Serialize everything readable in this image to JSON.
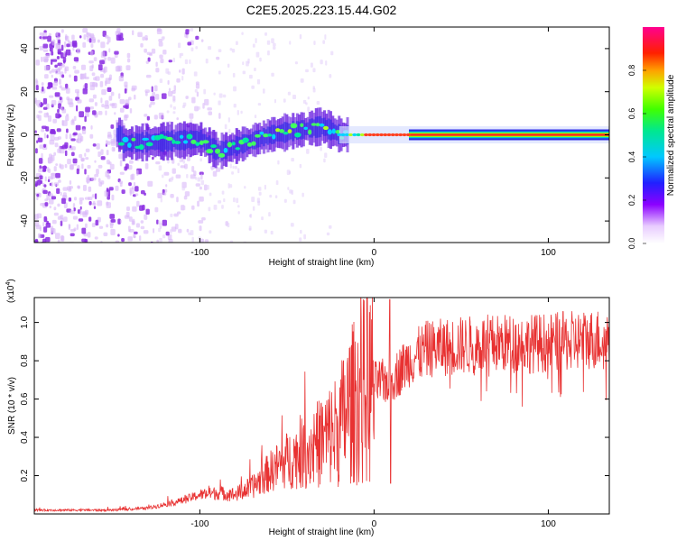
{
  "title": "C2E5.2025.223.15.44.G02",
  "colors": {
    "snr_line": "#e83232",
    "axis": "#000000"
  },
  "chart_data": [
    {
      "type": "heatmap",
      "xlabel": "Height of straight line (km)",
      "ylabel": "Frequency (Hz)",
      "xlim": [
        -195,
        135
      ],
      "ylim": [
        -50,
        50
      ],
      "xticks": [
        -100,
        0,
        100
      ],
      "yticks": [
        -40,
        -20,
        0,
        20,
        40
      ],
      "colorbar": {
        "label": "Normalized spectral amplitude",
        "range": [
          0,
          1
        ],
        "ticks": [
          "0.0",
          "0.2",
          "0.4",
          "0.6",
          "0.8"
        ],
        "colormap": "rainbow (white-violet-blue-cyan-green-yellow-red-magenta)"
      },
      "ridge": [
        {
          "x": -145,
          "y": -4
        },
        {
          "x": -120,
          "y": -3
        },
        {
          "x": -100,
          "y": -2
        },
        {
          "x": -90,
          "y": -8
        },
        {
          "x": -75,
          "y": -4
        },
        {
          "x": -60,
          "y": 0
        },
        {
          "x": -45,
          "y": 2
        },
        {
          "x": -30,
          "y": 4
        },
        {
          "x": -20,
          "y": 0
        },
        {
          "x": -10,
          "y": 0
        },
        {
          "x": 0,
          "y": 0
        },
        {
          "x": 20,
          "y": 0
        },
        {
          "x": 135,
          "y": 0
        }
      ],
      "noise_region_km": [
        -195,
        -125
      ]
    },
    {
      "type": "line",
      "xlabel": "Height of straight line (km)",
      "ylabel": "SNR (10 * v/v)",
      "yunit_label": "(x10",
      "yunit_exp": "4",
      "xlim": [
        -195,
        135
      ],
      "ylim": [
        0,
        1.13
      ],
      "xticks": [
        -100,
        0,
        100
      ],
      "yticks": [
        0.2,
        0.4,
        0.6,
        0.8,
        1.0
      ],
      "yticklabels": [
        "0.2",
        "0.4",
        "0.6",
        "0.8",
        "1.0"
      ],
      "series": [
        {
          "x": [
            -195,
            -150,
            -130,
            -110,
            -100,
            -90,
            -80,
            -70,
            -60,
            -50,
            -40,
            -30,
            -20,
            -15,
            -10,
            -5,
            0,
            10,
            20,
            30,
            50,
            70,
            90,
            110,
            135
          ],
          "y": [
            0.02,
            0.02,
            0.03,
            0.07,
            0.1,
            0.11,
            0.1,
            0.14,
            0.22,
            0.28,
            0.32,
            0.38,
            0.45,
            0.55,
            0.6,
            0.65,
            0.68,
            0.7,
            0.8,
            0.86,
            0.88,
            0.89,
            0.89,
            0.9,
            0.92
          ]
        }
      ]
    }
  ]
}
